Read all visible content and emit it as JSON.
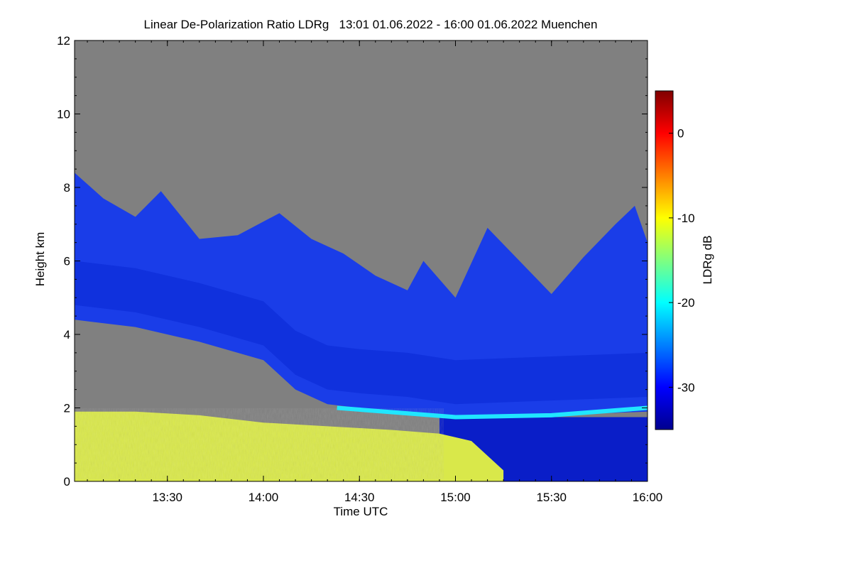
{
  "chart_data": {
    "type": "heatmap",
    "title": "Linear De-Polarization Ratio LDRg   13:01 01.06.2022 - 16:00 01.06.2022 Muenchen",
    "xlabel": "Time UTC",
    "ylabel": "Height km",
    "colorbar_label": "LDRg dB",
    "x_range": [
      "13:01",
      "16:00"
    ],
    "x_ticks": [
      "13:30",
      "14:00",
      "14:30",
      "15:00",
      "15:30",
      "16:00"
    ],
    "y_range": [
      0,
      12
    ],
    "y_ticks": [
      "0",
      "2",
      "4",
      "6",
      "8",
      "10",
      "12"
    ],
    "colorbar_range": [
      -35,
      5
    ],
    "colorbar_ticks": [
      "0",
      "-10",
      "-20",
      "-30"
    ],
    "colormap": "jet",
    "no_signal_color": "#808080",
    "features": {
      "cirrus_top_km": [
        [
          "13:01",
          8.4
        ],
        [
          "13:10",
          7.7
        ],
        [
          "13:20",
          7.2
        ],
        [
          "13:28",
          7.9
        ],
        [
          "13:40",
          6.6
        ],
        [
          "13:52",
          6.7
        ],
        [
          "14:05",
          7.3
        ],
        [
          "14:15",
          6.6
        ],
        [
          "14:25",
          6.2
        ],
        [
          "14:35",
          5.6
        ],
        [
          "14:45",
          5.2
        ],
        [
          "14:50",
          6.0
        ],
        [
          "15:00",
          5.0
        ],
        [
          "15:10",
          6.9
        ],
        [
          "15:20",
          6.0
        ],
        [
          "15:30",
          5.1
        ],
        [
          "15:40",
          6.1
        ],
        [
          "15:50",
          7.0
        ],
        [
          "15:56",
          7.5
        ],
        [
          "16:00",
          6.5
        ]
      ],
      "cirrus_bottom_km": [
        [
          "13:01",
          4.4
        ],
        [
          "13:20",
          4.2
        ],
        [
          "13:40",
          3.8
        ],
        [
          "14:00",
          3.3
        ],
        [
          "14:10",
          2.5
        ],
        [
          "14:20",
          2.1
        ],
        [
          "14:30",
          2.0
        ],
        [
          "14:45",
          1.9
        ],
        [
          "15:00",
          1.7
        ],
        [
          "15:30",
          1.8
        ],
        [
          "16:00",
          1.9
        ]
      ],
      "cirrus_ldr_db": -30,
      "boundary_layer_top_km": [
        [
          "13:01",
          1.9
        ],
        [
          "13:20",
          1.9
        ],
        [
          "13:40",
          1.8
        ],
        [
          "14:00",
          1.6
        ],
        [
          "14:20",
          1.5
        ],
        [
          "14:40",
          1.4
        ],
        [
          "14:55",
          1.3
        ],
        [
          "15:05",
          1.1
        ],
        [
          "15:15",
          0.3
        ]
      ],
      "boundary_layer_ldr_db": -12,
      "liquid_cloud_layer": {
        "start": "14:23",
        "end": "16:00",
        "height_km": [
          2.0,
          1.8
        ],
        "ldr_db": -22
      }
    }
  }
}
